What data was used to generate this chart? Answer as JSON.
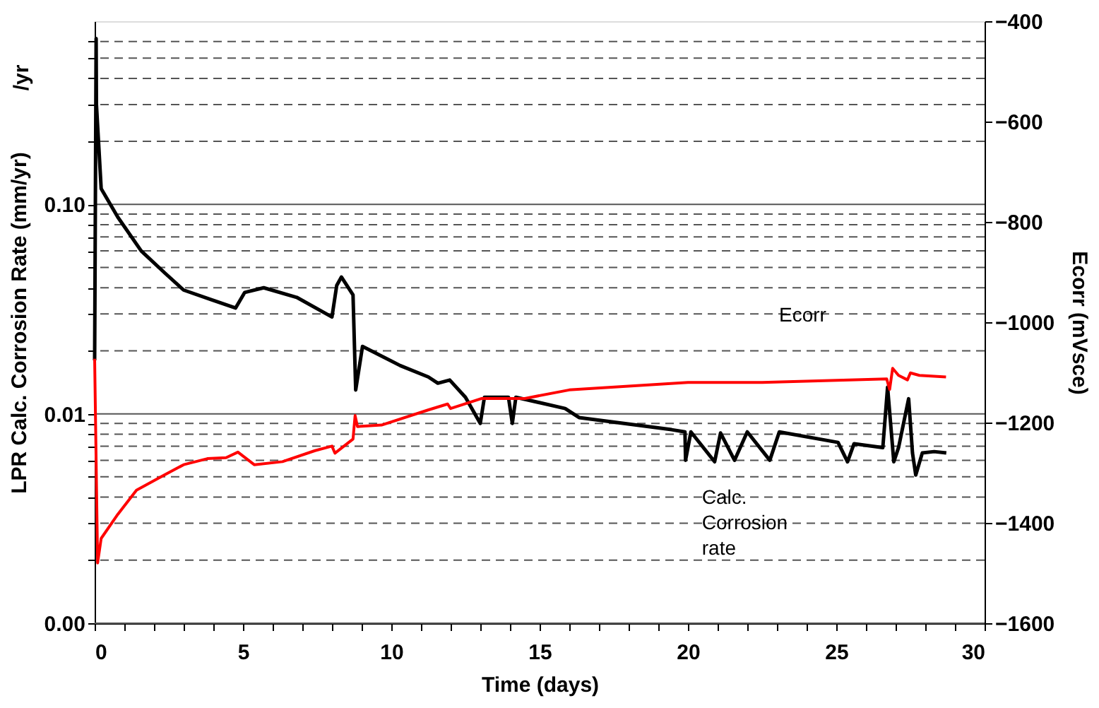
{
  "chart_data": {
    "type": "line",
    "xlabel": "Time (days)",
    "ylabel": "LPR Calc. Corrosion Rate (mm/yr)",
    "y2label": "Ecorr (mVsce)",
    "annotations": [
      "/yr"
    ],
    "log": "y",
    "grid": "y",
    "legend": false,
    "line_style": "solid",
    "marker": "none",
    "xlim": [
      0,
      30
    ],
    "xticks": [
      0,
      {
        "value": 1,
        "label": null
      },
      {
        "value": 2,
        "label": null
      },
      {
        "value": 3,
        "label": null
      },
      {
        "value": 4,
        "label": null
      },
      5,
      {
        "value": 6,
        "label": null
      },
      {
        "value": 7,
        "label": null
      },
      {
        "value": 8,
        "label": null
      },
      {
        "value": 9,
        "label": null
      },
      10,
      {
        "value": 11,
        "label": null
      },
      {
        "value": 12,
        "label": null
      },
      {
        "value": 13,
        "label": null
      },
      {
        "value": 14,
        "label": null
      },
      15,
      {
        "value": 16,
        "label": null
      },
      {
        "value": 17,
        "label": null
      },
      {
        "value": 18,
        "label": null
      },
      {
        "value": 19,
        "label": null
      },
      20,
      {
        "value": 21,
        "label": null
      },
      {
        "value": 22,
        "label": null
      },
      {
        "value": 23,
        "label": null
      },
      {
        "value": 24,
        "label": null
      },
      25,
      {
        "value": 26,
        "label": null
      },
      {
        "value": 27,
        "label": null
      },
      {
        "value": 28,
        "label": null
      },
      {
        "value": 29,
        "label": null
      },
      30
    ],
    "ylim": [
      0.001,
      0.75
    ],
    "yticks": [
      {
        "value": 0.001,
        "label": "0.00"
      },
      {
        "value": 0.002,
        "label": null
      },
      {
        "value": 0.003,
        "label": null
      },
      {
        "value": 0.004,
        "label": null
      },
      {
        "value": 0.005,
        "label": null
      },
      {
        "value": 0.006,
        "label": null
      },
      {
        "value": 0.007,
        "label": null
      },
      {
        "value": 0.008,
        "label": null
      },
      {
        "value": 0.009,
        "label": null
      },
      0.01,
      {
        "value": 0.02,
        "label": null
      },
      {
        "value": 0.03,
        "label": null
      },
      {
        "value": 0.04,
        "label": null
      },
      {
        "value": 0.05,
        "label": null
      },
      {
        "value": 0.06,
        "label": null
      },
      {
        "value": 0.07,
        "label": null
      },
      {
        "value": 0.08,
        "label": null
      },
      {
        "value": 0.09,
        "label": null
      },
      {
        "value": 0.1,
        "label": "0.10"
      },
      {
        "value": 0.2,
        "label": null
      },
      {
        "value": 0.3,
        "label": null
      },
      {
        "value": 0.4,
        "label": null
      },
      {
        "value": 0.5,
        "label": null
      },
      {
        "value": 0.6,
        "label": null
      }
    ],
    "y2lim": [
      -1600,
      -400
    ],
    "y2ticks": [
      -1600,
      -1400,
      -1200,
      -1000,
      -800,
      -600,
      -400
    ],
    "series": [
      {
        "name": "Calc. Corrosion rate",
        "color": "#000000",
        "x": [
          0,
          0.05,
          0.06,
          0.22,
          0.78,
          1.57,
          2.37,
          3.0,
          3.95,
          4.75,
          5.06,
          5.7,
          6.81,
          8.0,
          8.16,
          8.32,
          8.71,
          8.8,
          9.03,
          10.3,
          11.25,
          11.57,
          11.97,
          12.5,
          13.0,
          13.14,
          13.95,
          14.08,
          14.2,
          15.86,
          16.33,
          19.45,
          19.9,
          19.92,
          20.1,
          20.9,
          21.1,
          21.57,
          22.0,
          22.76,
          23.08,
          25.06,
          25.38,
          25.6,
          26.57,
          26.73,
          26.94,
          27.1,
          27.44,
          27.57,
          27.68,
          27.9,
          28.3,
          28.71
        ],
        "values": [
          0.018,
          0.62,
          0.3,
          0.119,
          0.087,
          0.06,
          0.047,
          0.039,
          0.035,
          0.032,
          0.038,
          0.04,
          0.036,
          0.029,
          0.041,
          0.045,
          0.037,
          0.013,
          0.021,
          0.017,
          0.015,
          0.014,
          0.0145,
          0.012,
          0.009,
          0.012,
          0.012,
          0.009,
          0.012,
          0.0106,
          0.0096,
          0.0084,
          0.0082,
          0.006,
          0.0082,
          0.0059,
          0.0081,
          0.006,
          0.0082,
          0.006,
          0.0082,
          0.0073,
          0.0059,
          0.0072,
          0.0069,
          0.0134,
          0.0059,
          0.0069,
          0.0118,
          0.0065,
          0.0051,
          0.0065,
          0.0066,
          0.0065
        ]
      },
      {
        "name": "Ecorr",
        "color": "#ff0000",
        "axis": "y2",
        "x": [
          0,
          0.1,
          0.22,
          0.78,
          1.41,
          2.37,
          3.0,
          3.8,
          4.43,
          4.83,
          5.38,
          6.33,
          7.43,
          8.0,
          8.1,
          8.71,
          8.78,
          8.86,
          9.67,
          11.24,
          11.9,
          12.0,
          13.05,
          14.5,
          16.0,
          20.0,
          22.5,
          26.7,
          26.8,
          26.9,
          27.1,
          27.4,
          27.5,
          27.8,
          28.7
        ],
        "values": [
          -1073,
          -1480,
          -1431,
          -1383,
          -1335,
          -1304,
          -1284,
          -1272,
          -1270,
          -1259,
          -1284,
          -1278,
          -1256,
          -1247,
          -1261,
          -1233,
          -1186,
          -1208,
          -1205,
          -1175,
          -1163,
          -1172,
          -1152,
          -1152,
          -1135,
          -1120,
          -1120,
          -1113,
          -1134,
          -1092,
          -1106,
          -1115,
          -1101,
          -1106,
          -1109
        ]
      }
    ]
  }
}
